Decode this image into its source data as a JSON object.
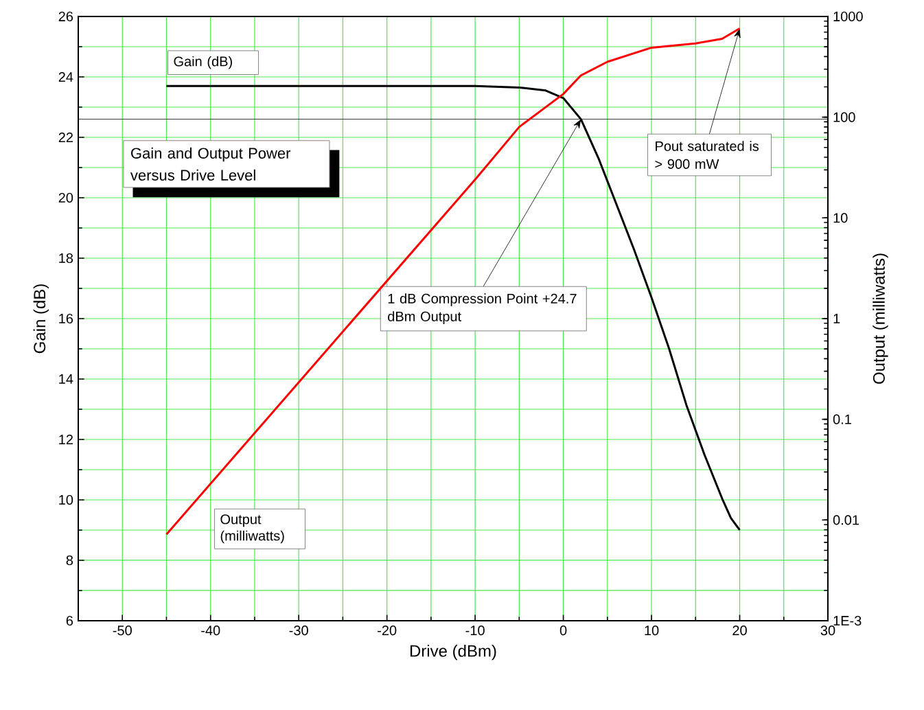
{
  "chart_data": {
    "type": "line",
    "title": "Gain and Output Power versus Drive Level",
    "xlabel": "Drive (dBm)",
    "ylabel": "Gain (dB)",
    "y2label": "Output (milliwatts)",
    "xlim": [
      -55,
      30
    ],
    "xticks": [
      -50,
      -40,
      -30,
      -20,
      -10,
      0,
      10,
      20,
      30
    ],
    "ylim": [
      6,
      26
    ],
    "yticks": [
      6,
      8,
      10,
      12,
      14,
      16,
      18,
      20,
      22,
      24,
      26
    ],
    "y2lim": [
      0.001,
      1000
    ],
    "y2ticks": [
      {
        "value": 0.001,
        "label": "1E-3"
      },
      0.01,
      0.1,
      1,
      10,
      100,
      1000
    ],
    "log": "y2",
    "grid": true,
    "legend": false,
    "marker": "none",
    "line_style": "solid",
    "series": [
      {
        "name": "Gain (dB)",
        "color": "#000000",
        "x": [
          -45,
          -30,
          -10,
          -5,
          -2,
          0,
          2,
          4,
          6,
          8,
          10,
          12,
          14,
          16,
          18,
          19,
          20
        ],
        "values": [
          23.7,
          23.7,
          23.7,
          23.65,
          23.55,
          23.3,
          22.6,
          21.3,
          19.8,
          18.3,
          16.7,
          15,
          13.1,
          11.5,
          10.05,
          9.4,
          9.0
        ]
      },
      {
        "name": "Output (milliwatts)",
        "color": "#ff0000",
        "axis": "y2",
        "x": [
          -45,
          -10,
          -5,
          0,
          2,
          5,
          10,
          15,
          18,
          20
        ],
        "values": [
          0.0072,
          24,
          80,
          170,
          260,
          355,
          490,
          540,
          600,
          760
        ]
      }
    ],
    "ref_lines": [
      {
        "axis": "y",
        "value": 22.6,
        "color": "#000000"
      }
    ],
    "annotations": [
      {
        "text": "1 dB Compression Point +24.7 dBm Output",
        "x": 2,
        "y": 22.6
      },
      {
        "text": "Pout saturated is > 900 mW",
        "x": 20,
        "y": 25.6
      }
    ]
  }
}
